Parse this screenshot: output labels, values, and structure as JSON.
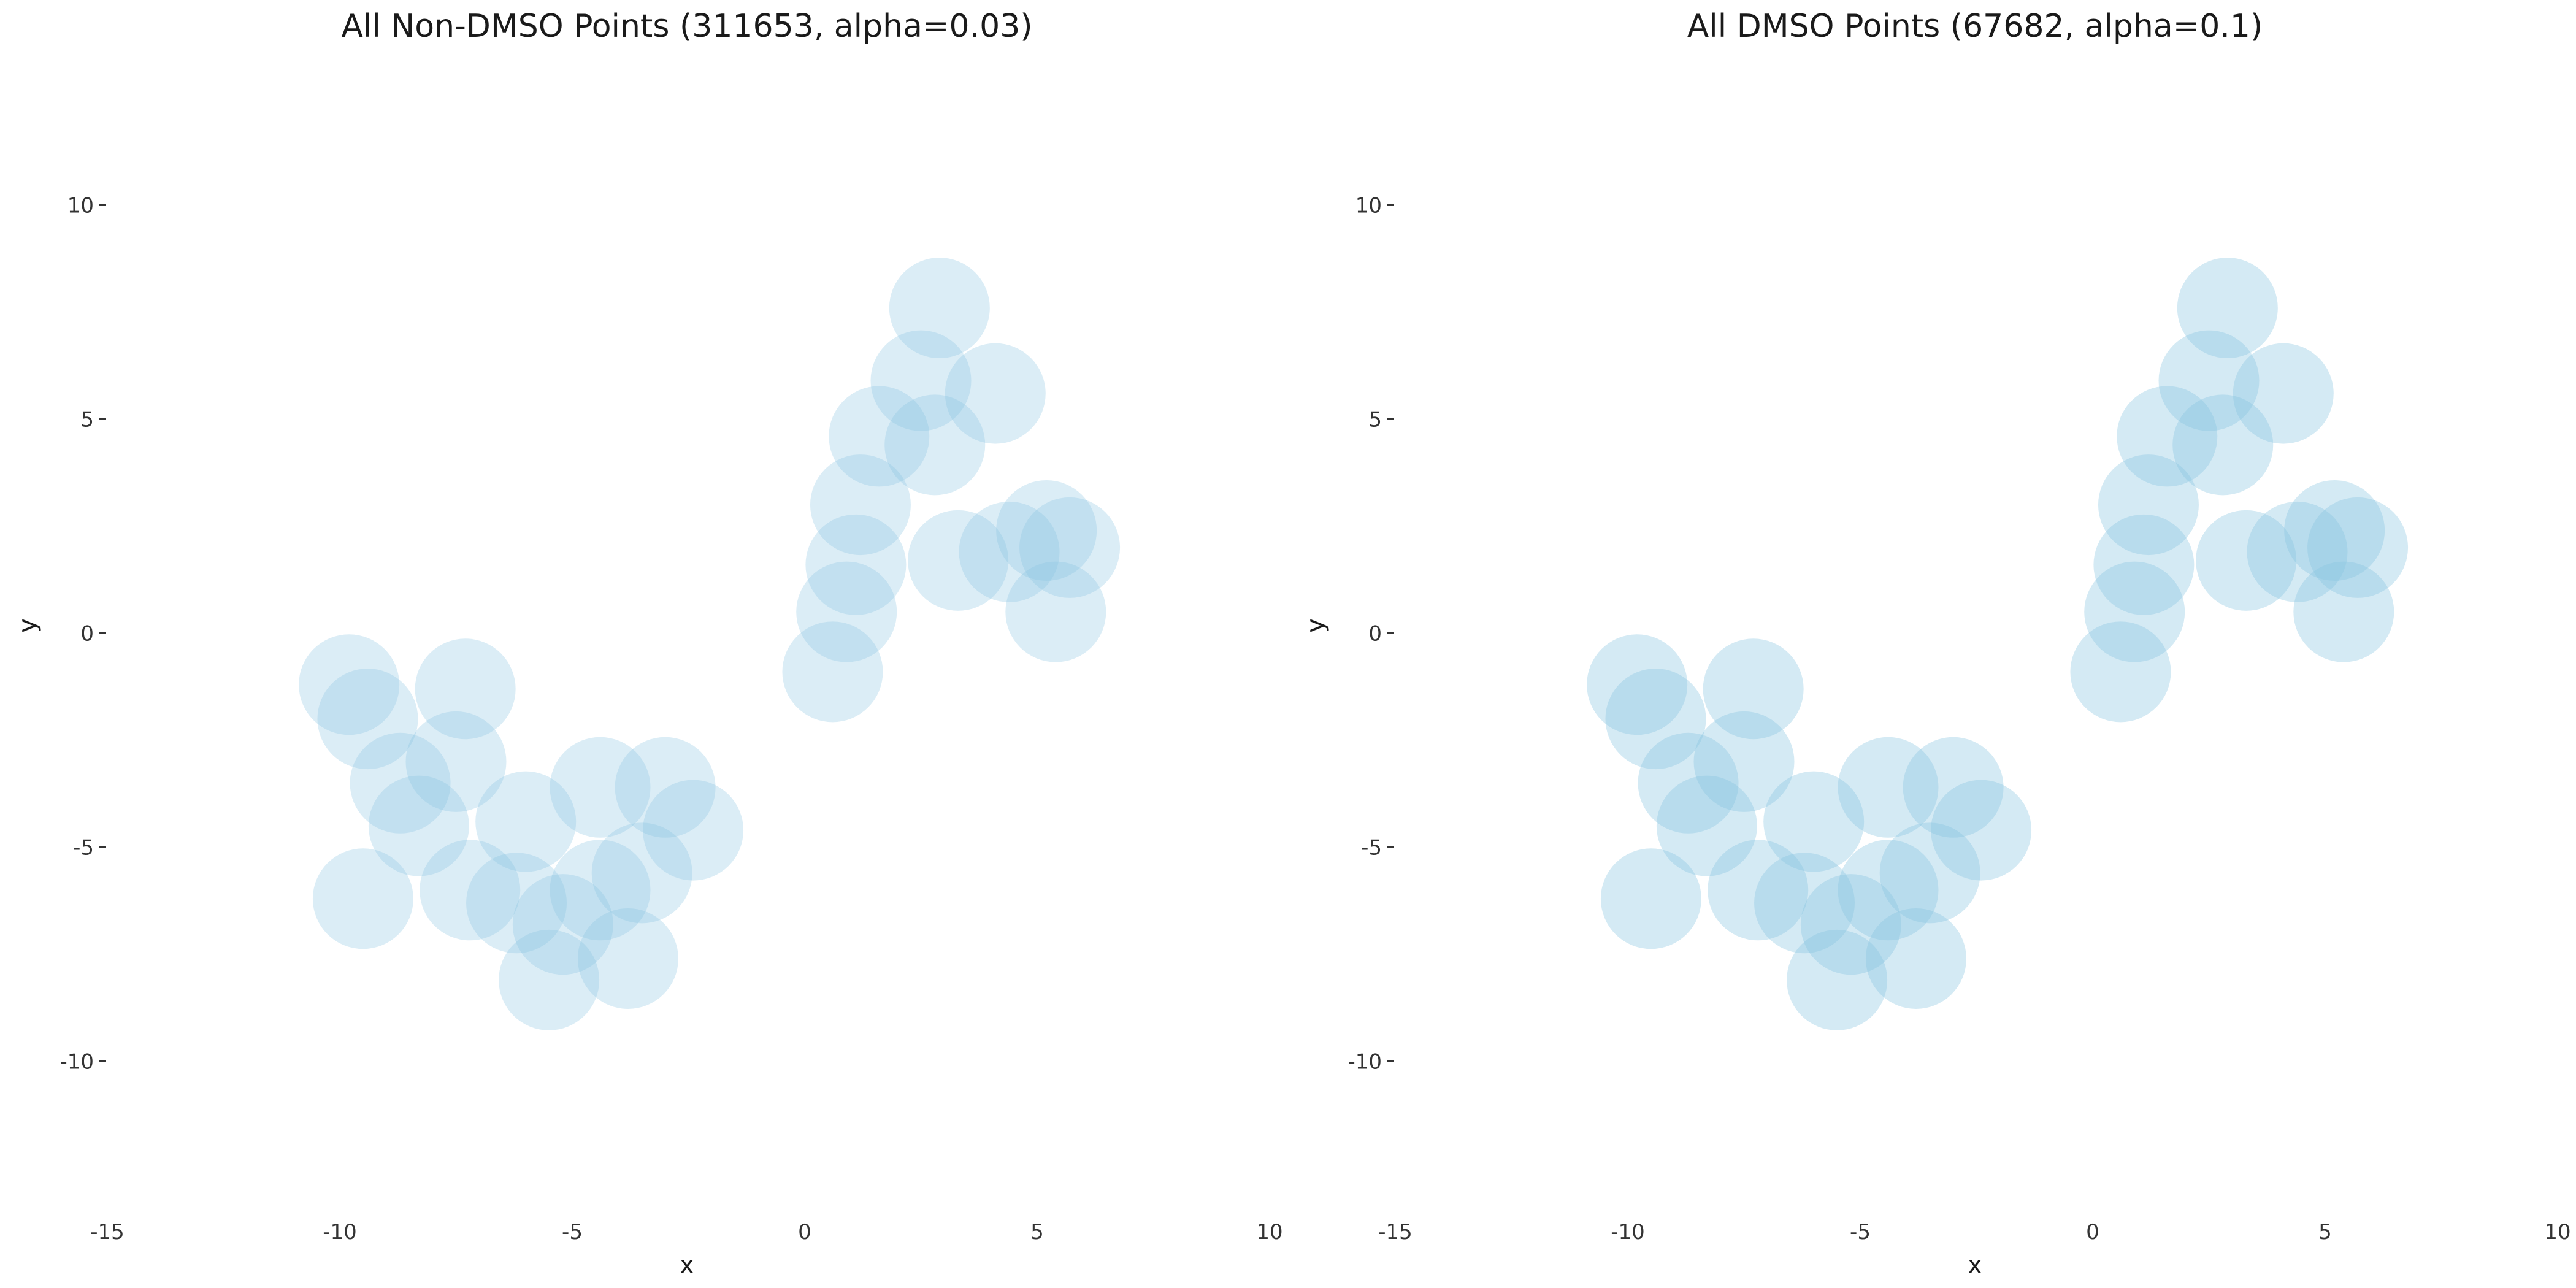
{
  "figure": {
    "background": "#ffffff",
    "point_color": "#87c4e1"
  },
  "chart_data": [
    {
      "type": "scatter",
      "title": "All Non-DMSO Points (311653, alpha=0.03)",
      "xlabel": "x",
      "ylabel": "y",
      "xlim": [
        -15,
        10
      ],
      "ylim": [
        -12.5,
        12.5
      ],
      "x_ticks": [
        -15,
        -10,
        -5,
        0,
        5,
        10
      ],
      "y_ticks": [
        10,
        5,
        0,
        -5,
        -10
      ],
      "x_tick_labels": [
        "-15",
        "-10",
        "-5",
        "0",
        "5",
        "10"
      ],
      "y_tick_labels": [
        "10",
        "5",
        "0",
        "-5",
        "-10"
      ],
      "grid": false,
      "point_alpha": 0.03,
      "n_points": 311653,
      "point_color": "#87c4e1",
      "series": [
        {
          "values": [
            {
              "x": -6.2,
              "y": -6.3
            },
            {
              "x": -5.2,
              "y": -6.8
            },
            {
              "x": -7.2,
              "y": -6.0
            },
            {
              "x": -4.4,
              "y": -6.0
            },
            {
              "x": -3.5,
              "y": -5.6
            },
            {
              "x": -8.7,
              "y": -3.5
            },
            {
              "x": -9.4,
              "y": -2.0
            },
            {
              "x": -8.3,
              "y": -4.5
            },
            {
              "x": -6.0,
              "y": -4.4
            },
            {
              "x": -4.4,
              "y": -3.6
            },
            {
              "x": -3.0,
              "y": -3.6
            },
            {
              "x": -2.4,
              "y": -4.6
            },
            {
              "x": -9.5,
              "y": -6.2
            },
            {
              "x": -5.5,
              "y": -8.1
            },
            {
              "x": -3.8,
              "y": -7.6
            },
            {
              "x": -7.5,
              "y": -3.0
            },
            {
              "x": -9.8,
              "y": -1.2
            },
            {
              "x": -7.3,
              "y": -1.3
            },
            {
              "x": 2.5,
              "y": 5.9
            },
            {
              "x": 1.6,
              "y": 4.6
            },
            {
              "x": 2.8,
              "y": 4.4
            },
            {
              "x": 1.2,
              "y": 3.0
            },
            {
              "x": 1.1,
              "y": 1.6
            },
            {
              "x": 0.9,
              "y": 0.5
            },
            {
              "x": 0.6,
              "y": -0.9
            },
            {
              "x": 2.9,
              "y": 7.6
            },
            {
              "x": 4.1,
              "y": 5.6
            },
            {
              "x": 3.3,
              "y": 1.7
            },
            {
              "x": 4.4,
              "y": 1.9
            },
            {
              "x": 5.2,
              "y": 2.4
            },
            {
              "x": 5.7,
              "y": 2.0
            },
            {
              "x": 5.4,
              "y": 0.5
            }
          ]
        }
      ]
    },
    {
      "type": "scatter",
      "title": "All DMSO Points (67682, alpha=0.1)",
      "xlabel": "x",
      "ylabel": "y",
      "xlim": [
        -15,
        10
      ],
      "ylim": [
        -12.5,
        12.5
      ],
      "x_ticks": [
        -15,
        -10,
        -5,
        0,
        5,
        10
      ],
      "y_ticks": [
        10,
        5,
        0,
        -5,
        -10
      ],
      "x_tick_labels": [
        "-15",
        "-10",
        "-5",
        "0",
        "5",
        "10"
      ],
      "y_tick_labels": [
        "10",
        "5",
        "0",
        "-5",
        "-10"
      ],
      "grid": false,
      "point_alpha": 0.1,
      "n_points": 67682,
      "point_color": "#87c4e1",
      "series": [
        {
          "values": [
            {
              "x": -6.2,
              "y": -6.3
            },
            {
              "x": -5.2,
              "y": -6.8
            },
            {
              "x": -7.2,
              "y": -6.0
            },
            {
              "x": -4.4,
              "y": -6.0
            },
            {
              "x": -3.5,
              "y": -5.6
            },
            {
              "x": -8.7,
              "y": -3.5
            },
            {
              "x": -9.4,
              "y": -2.0
            },
            {
              "x": -8.3,
              "y": -4.5
            },
            {
              "x": -6.0,
              "y": -4.4
            },
            {
              "x": -4.4,
              "y": -3.6
            },
            {
              "x": -3.0,
              "y": -3.6
            },
            {
              "x": -2.4,
              "y": -4.6
            },
            {
              "x": -9.5,
              "y": -6.2
            },
            {
              "x": -5.5,
              "y": -8.1
            },
            {
              "x": -3.8,
              "y": -7.6
            },
            {
              "x": -7.5,
              "y": -3.0
            },
            {
              "x": -9.8,
              "y": -1.2
            },
            {
              "x": -7.3,
              "y": -1.3
            },
            {
              "x": 2.5,
              "y": 5.9
            },
            {
              "x": 1.6,
              "y": 4.6
            },
            {
              "x": 2.8,
              "y": 4.4
            },
            {
              "x": 1.2,
              "y": 3.0
            },
            {
              "x": 1.1,
              "y": 1.6
            },
            {
              "x": 0.9,
              "y": 0.5
            },
            {
              "x": 0.6,
              "y": -0.9
            },
            {
              "x": 2.9,
              "y": 7.6
            },
            {
              "x": 4.1,
              "y": 5.6
            },
            {
              "x": 3.3,
              "y": 1.7
            },
            {
              "x": 4.4,
              "y": 1.9
            },
            {
              "x": 5.2,
              "y": 2.4
            },
            {
              "x": 5.7,
              "y": 2.0
            },
            {
              "x": 5.4,
              "y": 0.5
            }
          ]
        }
      ]
    }
  ]
}
